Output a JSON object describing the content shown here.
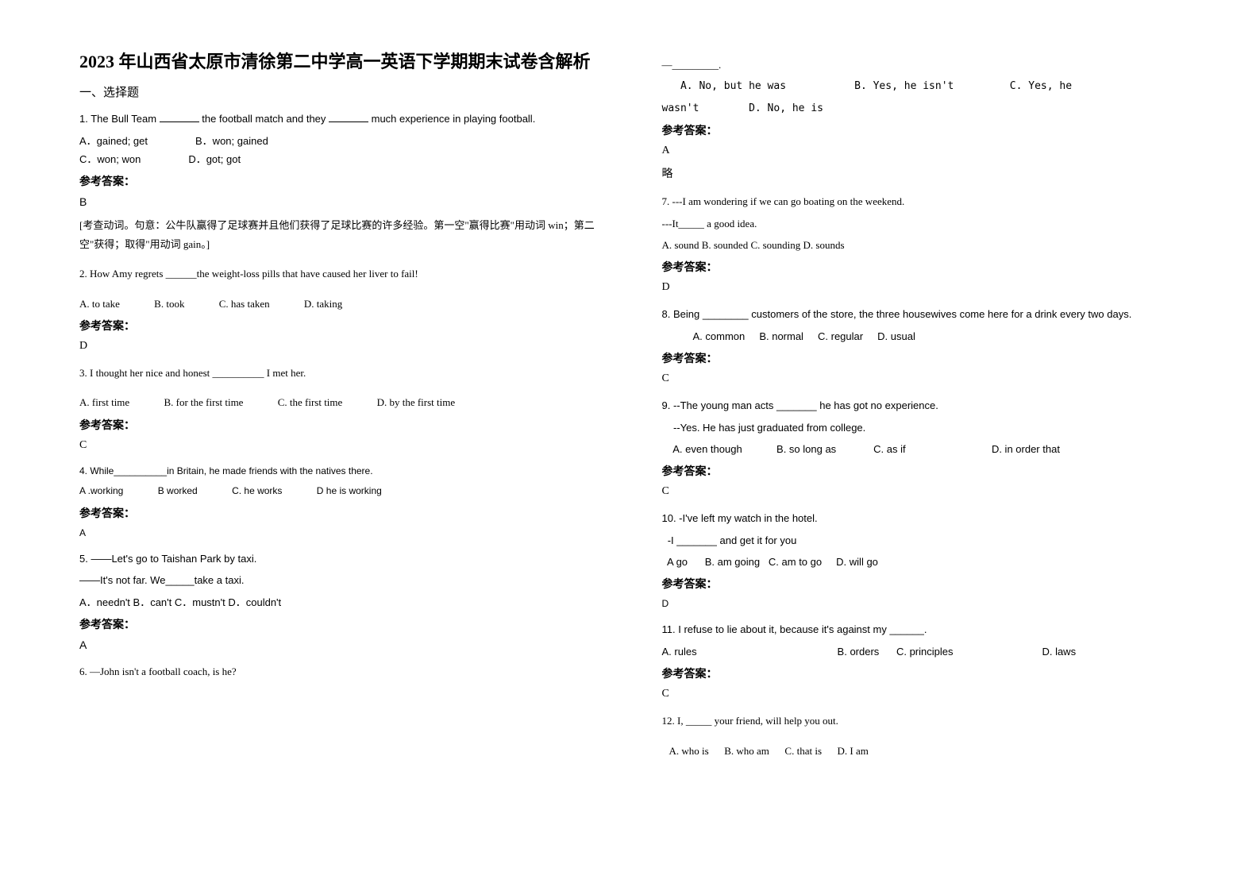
{
  "title": "2023 年山西省太原市清徐第二中学高一英语下学期期末试卷含解析",
  "section_header": "一、选择题",
  "answer_label": "参考答案：",
  "skip_label": "略",
  "left_column": {
    "questions": [
      {
        "number": "1",
        "text_parts": [
          "1. The Bull Team ",
          " the football match and they ",
          " much experience in playing football."
        ],
        "options": [
          "A．gained; get",
          "B．won; gained",
          "C．won; won",
          "D．got; got"
        ],
        "answer": "B",
        "explanation": "[考查动词。句意：公牛队赢得了足球赛并且他们获得了足球比赛的许多经验。第一空\"赢得比赛\"用动词 win；第二空\"获得；取得\"用动词 gain。]"
      },
      {
        "number": "2",
        "text": "2. How Amy regrets ______the weight-loss pills that have caused her liver to fail!",
        "options": [
          "A. to take",
          "B. took",
          "C. has taken",
          "D. taking"
        ],
        "answer": "D"
      },
      {
        "number": "3",
        "text": "3. I thought her nice and honest __________ I met her.",
        "options": [
          "A. first time",
          "B. for the first time",
          "C. the first time",
          "D. by the first time"
        ],
        "answer": "C"
      },
      {
        "number": "4",
        "text": "4. While__________in Britain, he made friends with the natives there.",
        "options": [
          "A .working",
          "B worked",
          "C. he works",
          "D he is working"
        ],
        "answer": "A"
      },
      {
        "number": "5",
        "text1": "5. ――Let's go to Taishan Park by taxi.",
        "text2": "――It's not far. We_____take a taxi.",
        "options": [
          "A．needn't B．can't C．mustn't D．couldn't"
        ],
        "answer": "A"
      },
      {
        "number": "6",
        "text": "6. —John isn't a football coach, is he?"
      }
    ]
  },
  "right_column": {
    "q6_continuation": {
      "dash": "—_________.",
      "options_line1": "   A. No, but he was           B. Yes, he isn't         C. Yes, he",
      "options_line2": "wasn't        D. No, he is",
      "answer": "A"
    },
    "questions": [
      {
        "number": "7",
        "text1": "7. ---I am wondering if we can go boating on the weekend.",
        "text2": "---It_____ a good idea.",
        "options": "A. sound   B. sounded   C. sounding   D. sounds",
        "answer": "D"
      },
      {
        "number": "8",
        "text": "8. Being ________ customers of the store, the three housewives come here for a drink every two days.",
        "options": "           A. common     B. normal     C. regular     D. usual",
        "answer": "C"
      },
      {
        "number": "9",
        "text1": "9. --The young man acts _______ he has got no experience.",
        "text2": "    --Yes. He has just graduated from college.",
        "options": "    A. even though            B. so long as             C. as if                              D. in order that",
        "answer": "C"
      },
      {
        "number": "10",
        "text1": "10. -I've left my watch in the hotel.",
        "text2": "  -I _______ and get it for you",
        "options": "  A go      B. am going   C. am to go     D. will go",
        "answer": "D"
      },
      {
        "number": "11",
        "text": "11. I refuse to lie about it, because it's against my ______.",
        "options": "A. rules                                                 B. orders      C. principles                               D. laws",
        "answer": "C"
      },
      {
        "number": "12",
        "text": "12.  I, _____ your friend, will help you out.",
        "options": "   A. who is      B. who am      C. that is      D. I am"
      }
    ]
  }
}
